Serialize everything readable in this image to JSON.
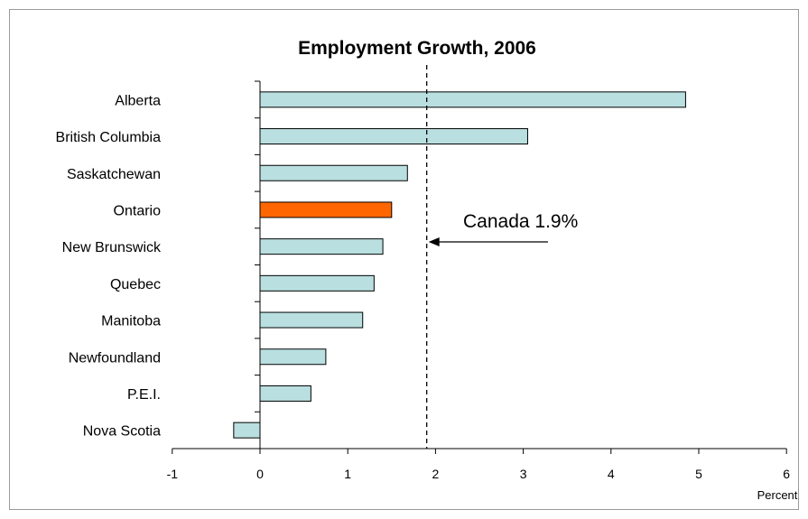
{
  "chart_data": {
    "type": "bar",
    "orientation": "horizontal",
    "title": "Employment Growth,  2006",
    "xlabel": "Percent",
    "xlim": [
      -1,
      6
    ],
    "xticks": [
      "-1",
      "0",
      "1",
      "2",
      "3",
      "4",
      "5",
      "6"
    ],
    "grid": false,
    "legend": "none",
    "categories": [
      "Alberta",
      "British Columbia",
      "Saskatchewan",
      "Ontario",
      "New Brunswick",
      "Quebec",
      "Manitoba",
      "Newfoundland",
      "P.E.I.",
      "Nova Scotia"
    ],
    "values": [
      4.85,
      3.05,
      1.68,
      1.5,
      1.4,
      1.3,
      1.17,
      0.75,
      0.58,
      -0.3
    ],
    "bar_color": "#b9dfe0",
    "highlight_color": "#ff6600",
    "highlight_category": "Ontario",
    "reference_line": {
      "value": 1.9,
      "label": "Canada 1.9%"
    }
  }
}
